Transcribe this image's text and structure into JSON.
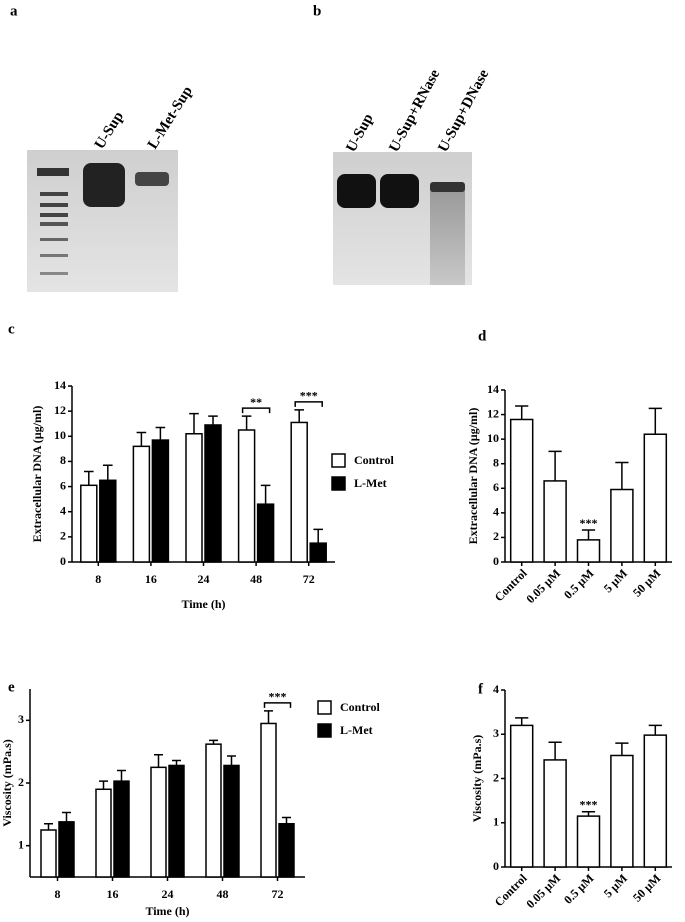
{
  "gels": [
    {
      "label": "a",
      "lanes": [
        "U-Sup",
        "L-Met-Sup"
      ]
    },
    {
      "label": "b",
      "lanes": [
        "U-Sup",
        "U-Sup+RNase",
        "U-Sup+DNase"
      ]
    }
  ],
  "chart_data": [
    {
      "type": "bar",
      "panel": "c",
      "xlabel": "Time (h)",
      "ylabel": "Extracellular DNA (µg/ml)",
      "categories": [
        "8",
        "16",
        "24",
        "48",
        "72"
      ],
      "series": [
        {
          "name": "Control",
          "color": "#ffffff",
          "values": [
            6.1,
            9.2,
            10.2,
            10.5,
            11.1
          ],
          "errors": [
            1.1,
            1.1,
            1.6,
            1.1,
            1.0
          ]
        },
        {
          "name": "L-Met",
          "color": "#000000",
          "values": [
            6.5,
            9.7,
            10.9,
            4.6,
            1.5
          ],
          "errors": [
            1.2,
            1.0,
            0.7,
            1.5,
            1.1
          ]
        }
      ],
      "ylim": [
        0,
        14
      ],
      "yticks": [
        0,
        2,
        4,
        6,
        8,
        10,
        12,
        14
      ],
      "grid": false,
      "legend": "right",
      "annotations": [
        {
          "text": "**",
          "x": "48"
        },
        {
          "text": "***",
          "x": "72"
        }
      ]
    },
    {
      "type": "bar",
      "panel": "d",
      "ylabel": "Extracellular DNA (µg/ml)",
      "categories": [
        "Control",
        "0.05 µM",
        "0.5 µM",
        "5 µM",
        "50 µM"
      ],
      "values": [
        11.6,
        6.6,
        1.8,
        5.9,
        10.4
      ],
      "errors": [
        1.1,
        2.4,
        0.8,
        2.2,
        2.1
      ],
      "color": "#ffffff",
      "ylim": [
        0,
        14
      ],
      "yticks": [
        0,
        2,
        4,
        6,
        8,
        10,
        12,
        14
      ],
      "grid": false,
      "annotations": [
        {
          "text": "***",
          "x": "0.5 µM"
        }
      ]
    },
    {
      "type": "bar",
      "panel": "e",
      "xlabel": "Time (h)",
      "ylabel": "Viscosity (mPa.s)",
      "categories": [
        "8",
        "16",
        "24",
        "48",
        "72"
      ],
      "series": [
        {
          "name": "Control",
          "color": "#ffffff",
          "values": [
            1.25,
            1.9,
            2.25,
            2.62,
            2.95
          ],
          "errors": [
            0.1,
            0.13,
            0.2,
            0.06,
            0.2
          ]
        },
        {
          "name": "L-Met",
          "color": "#000000",
          "values": [
            1.38,
            2.03,
            2.28,
            2.28,
            1.35
          ],
          "errors": [
            0.15,
            0.17,
            0.08,
            0.15,
            0.1
          ]
        }
      ],
      "ylim": [
        0.5,
        3.5
      ],
      "yticks": [
        1,
        2,
        3
      ],
      "grid": false,
      "legend": "right",
      "annotations": [
        {
          "text": "***",
          "x": "72"
        }
      ]
    },
    {
      "type": "bar",
      "panel": "f",
      "ylabel": "Viscosity (mPa.s)",
      "categories": [
        "Control",
        "0.05 µM",
        "0.5 µM",
        "5 µM",
        "50 µM"
      ],
      "values": [
        3.2,
        2.42,
        1.15,
        2.52,
        2.98
      ],
      "errors": [
        0.17,
        0.4,
        0.1,
        0.28,
        0.22
      ],
      "color": "#ffffff",
      "ylim": [
        0,
        4
      ],
      "yticks": [
        0,
        1,
        2,
        3,
        4
      ],
      "grid": false,
      "annotations": [
        {
          "text": "***",
          "x": "0.5 µM"
        }
      ]
    }
  ]
}
